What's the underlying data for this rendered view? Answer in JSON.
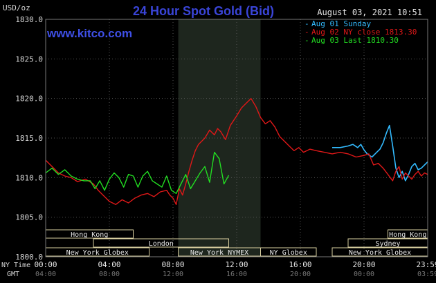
{
  "header": {
    "title": "24 Hour Spot Gold (Bid)",
    "units": "USD/oz",
    "datetime": "August 03, 2021 10:51",
    "brand": "www.kitco.com"
  },
  "legend": [
    {
      "label": "Aug 01 Sunday",
      "color": "#33bbff"
    },
    {
      "label": "Aug 02 NY close 1813.30",
      "color": "#e01818"
    },
    {
      "label": "Aug 03 Last 1810.30",
      "color": "#22dd22"
    }
  ],
  "axis_labels": {
    "ny_time": "NY Time",
    "gmt": "GMT"
  },
  "sessions": [
    {
      "label": "Hong Kong",
      "start_hr": 0,
      "end_hr": 5.5,
      "row": 0
    },
    {
      "label": "Hong Kong",
      "start_hr": 21.5,
      "end_hr": 24,
      "row": 0
    },
    {
      "label": "London",
      "start_hr": 3,
      "end_hr": 11.5,
      "row": 1
    },
    {
      "label": "Sydney",
      "start_hr": 19,
      "end_hr": 24,
      "row": 1
    },
    {
      "label": "New York Globex",
      "start_hr": 0,
      "end_hr": 6.5,
      "row": 2
    },
    {
      "label": "New York NYMEX",
      "start_hr": 8.33,
      "end_hr": 13.5,
      "row": 2
    },
    {
      "label": "NY Globex",
      "start_hr": 13.5,
      "end_hr": 17,
      "row": 2
    },
    {
      "label": "New York Globex",
      "start_hr": 18,
      "end_hr": 24,
      "row": 2
    }
  ],
  "chart_data": {
    "type": "line",
    "title": "24 Hour Spot Gold (Bid)",
    "ylabel": "USD/oz",
    "ylim": [
      1800,
      1830
    ],
    "xlim_hours": [
      0,
      24
    ],
    "yticks": [
      "1800.0",
      "1805.0",
      "1810.0",
      "1815.0",
      "1820.0",
      "1825.0",
      "1830.0"
    ],
    "xticks_ny": [
      "00:00",
      "04:00",
      "08:00",
      "12:00",
      "16:00",
      "20:00",
      "23:59"
    ],
    "xticks_gmt": [
      "04:00",
      "08:00",
      "12:00",
      "16:00",
      "20:00",
      "00:00",
      "03:59"
    ],
    "xtick_hours": [
      0,
      4,
      8,
      12,
      16,
      20,
      24
    ],
    "highlight_hours": [
      8.33,
      13.5
    ],
    "grid": true,
    "series": [
      {
        "name": "Aug 01 Sunday",
        "color": "#33bbff",
        "x": [
          18.0,
          18.5,
          19.0,
          19.3,
          19.6,
          19.8,
          20.0,
          20.2,
          20.5,
          20.8,
          21.0,
          21.2,
          21.4,
          21.6,
          21.8,
          22.0,
          22.2,
          22.4,
          22.6,
          22.8,
          23.0,
          23.2,
          23.4,
          23.6,
          23.8,
          24.0
        ],
        "y": [
          1813.8,
          1813.8,
          1814.0,
          1814.2,
          1813.8,
          1814.2,
          1813.5,
          1813.0,
          1812.6,
          1813.2,
          1813.6,
          1814.4,
          1815.6,
          1816.6,
          1814.0,
          1811.2,
          1810.0,
          1810.8,
          1809.6,
          1810.4,
          1811.4,
          1811.8,
          1811.0,
          1811.2,
          1811.6,
          1812.0
        ]
      },
      {
        "name": "Aug 02 NY close 1813.30",
        "color": "#e01818",
        "x": [
          0.0,
          0.4,
          0.8,
          1.2,
          1.6,
          2.0,
          2.5,
          3.0,
          3.3,
          3.6,
          4.0,
          4.4,
          4.8,
          5.2,
          5.6,
          6.0,
          6.4,
          6.8,
          7.2,
          7.6,
          7.8,
          8.0,
          8.2,
          8.4,
          8.6,
          8.8,
          9.0,
          9.2,
          9.4,
          9.6,
          9.8,
          10.0,
          10.3,
          10.6,
          10.8,
          11.0,
          11.3,
          11.6,
          12.0,
          12.3,
          12.6,
          12.9,
          13.2,
          13.5,
          13.8,
          14.1,
          14.4,
          14.7,
          15.0,
          15.3,
          15.6,
          15.9,
          16.2,
          16.6,
          17.0,
          17.5,
          18.0,
          18.5,
          19.0,
          19.5,
          20.0,
          20.3,
          20.6,
          20.9,
          21.2,
          21.5,
          21.8,
          22.0,
          22.2,
          22.4,
          22.6,
          22.8,
          23.0,
          23.2,
          23.4,
          23.6,
          23.8,
          24.0
        ],
        "y": [
          1812.2,
          1811.4,
          1810.6,
          1810.2,
          1810.0,
          1809.5,
          1809.8,
          1809.2,
          1808.4,
          1807.8,
          1807.0,
          1806.6,
          1807.2,
          1806.8,
          1807.4,
          1807.8,
          1808.0,
          1807.6,
          1808.2,
          1808.4,
          1807.8,
          1807.4,
          1806.6,
          1808.6,
          1807.8,
          1809.2,
          1810.8,
          1812.2,
          1813.4,
          1814.2,
          1814.6,
          1815.0,
          1816.0,
          1815.4,
          1816.2,
          1815.8,
          1814.8,
          1816.6,
          1817.8,
          1818.8,
          1819.4,
          1820.0,
          1819.0,
          1817.6,
          1816.8,
          1817.2,
          1816.4,
          1815.2,
          1814.6,
          1814.0,
          1813.4,
          1813.8,
          1813.2,
          1813.6,
          1813.4,
          1813.2,
          1813.0,
          1813.2,
          1813.0,
          1812.6,
          1812.8,
          1813.0,
          1811.6,
          1811.8,
          1811.2,
          1810.4,
          1809.6,
          1810.8,
          1811.4,
          1809.8,
          1810.6,
          1810.2,
          1809.8,
          1810.4,
          1810.8,
          1810.2,
          1810.6,
          1810.4
        ]
      },
      {
        "name": "Aug 03 Last 1810.30",
        "color": "#22dd22",
        "x": [
          0.0,
          0.4,
          0.8,
          1.2,
          1.6,
          2.0,
          2.4,
          2.8,
          3.1,
          3.4,
          3.7,
          4.0,
          4.3,
          4.6,
          4.9,
          5.2,
          5.5,
          5.8,
          6.1,
          6.4,
          6.7,
          7.0,
          7.3,
          7.6,
          7.9,
          8.2,
          8.5,
          8.8,
          9.1,
          9.4,
          9.7,
          10.0,
          10.3,
          10.6,
          10.9,
          11.2,
          11.5
        ],
        "y": [
          1810.6,
          1811.2,
          1810.4,
          1811.0,
          1810.2,
          1809.8,
          1809.6,
          1809.6,
          1808.6,
          1809.6,
          1808.4,
          1809.8,
          1810.6,
          1810.0,
          1808.8,
          1810.4,
          1810.2,
          1808.8,
          1810.2,
          1810.8,
          1809.6,
          1809.2,
          1808.8,
          1810.2,
          1808.4,
          1808.0,
          1809.2,
          1810.4,
          1808.6,
          1809.6,
          1810.6,
          1811.4,
          1809.4,
          1813.2,
          1812.4,
          1809.2,
          1810.3
        ]
      }
    ]
  }
}
